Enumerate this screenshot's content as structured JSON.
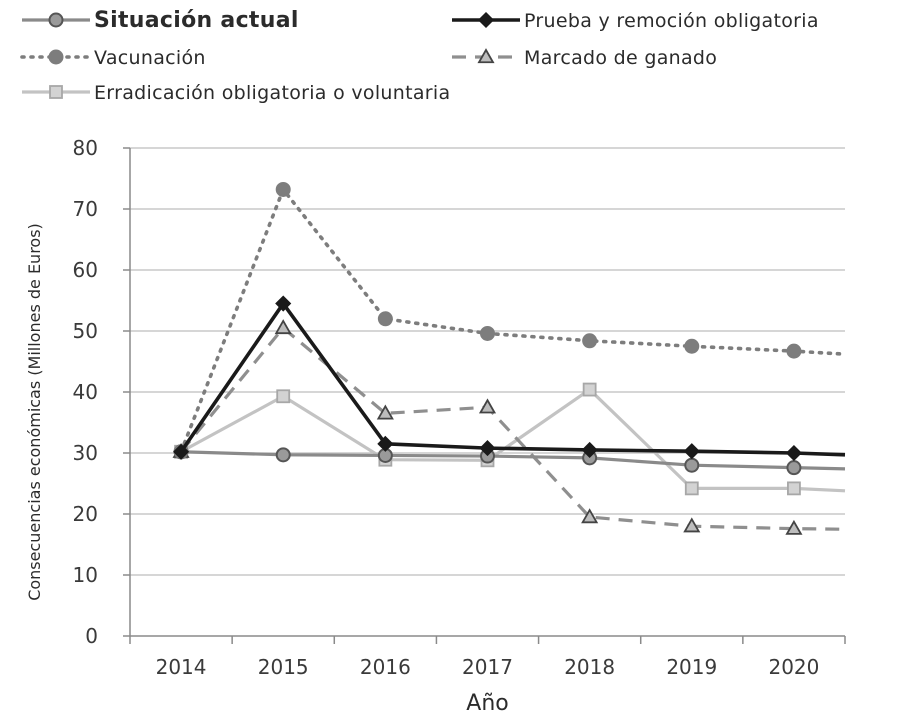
{
  "chart_data": {
    "type": "line",
    "title": "",
    "xlabel": "Año",
    "ylabel": "Consecuencias económicas (Millones de Euros)",
    "x": [
      "2014",
      "2015",
      "2016",
      "2017",
      "2018",
      "2019",
      "2020"
    ],
    "ylim": [
      0,
      80
    ],
    "yticks": [
      0,
      10,
      20,
      30,
      40,
      50,
      60,
      70,
      80
    ],
    "grid": true,
    "legend_position": "top",
    "series": [
      {
        "name": "Situación actual",
        "style": "solid-circle",
        "color": "#8a8a8a",
        "values": [
          30.2,
          29.7,
          29.6,
          29.5,
          29.2,
          28.0,
          27.6
        ],
        "end_value": 27.4
      },
      {
        "name": "Prueba y remoción obligatoria",
        "style": "solid-diamond",
        "color": "#1a1a1a",
        "values": [
          30.2,
          54.5,
          31.5,
          30.8,
          30.5,
          30.3,
          30.0
        ],
        "end_value": 29.7
      },
      {
        "name": "Vacunación",
        "style": "dotted-circle",
        "color": "#7d7d7d",
        "values": [
          30.2,
          73.2,
          52.0,
          49.6,
          48.4,
          47.5,
          46.7
        ],
        "end_value": 46.2
      },
      {
        "name": "Marcado de ganado",
        "style": "dashed-triangle",
        "color": "#8f8f8f",
        "values": [
          30.2,
          50.5,
          36.5,
          37.5,
          19.5,
          18.0,
          17.6
        ],
        "end_value": 17.5
      },
      {
        "name": "Erradicación obligatoria o voluntaria",
        "style": "solid-square",
        "color": "#c3c3c3",
        "values": [
          30.2,
          39.3,
          28.9,
          28.8,
          40.4,
          24.2,
          24.2
        ],
        "end_value": 23.8
      }
    ]
  }
}
